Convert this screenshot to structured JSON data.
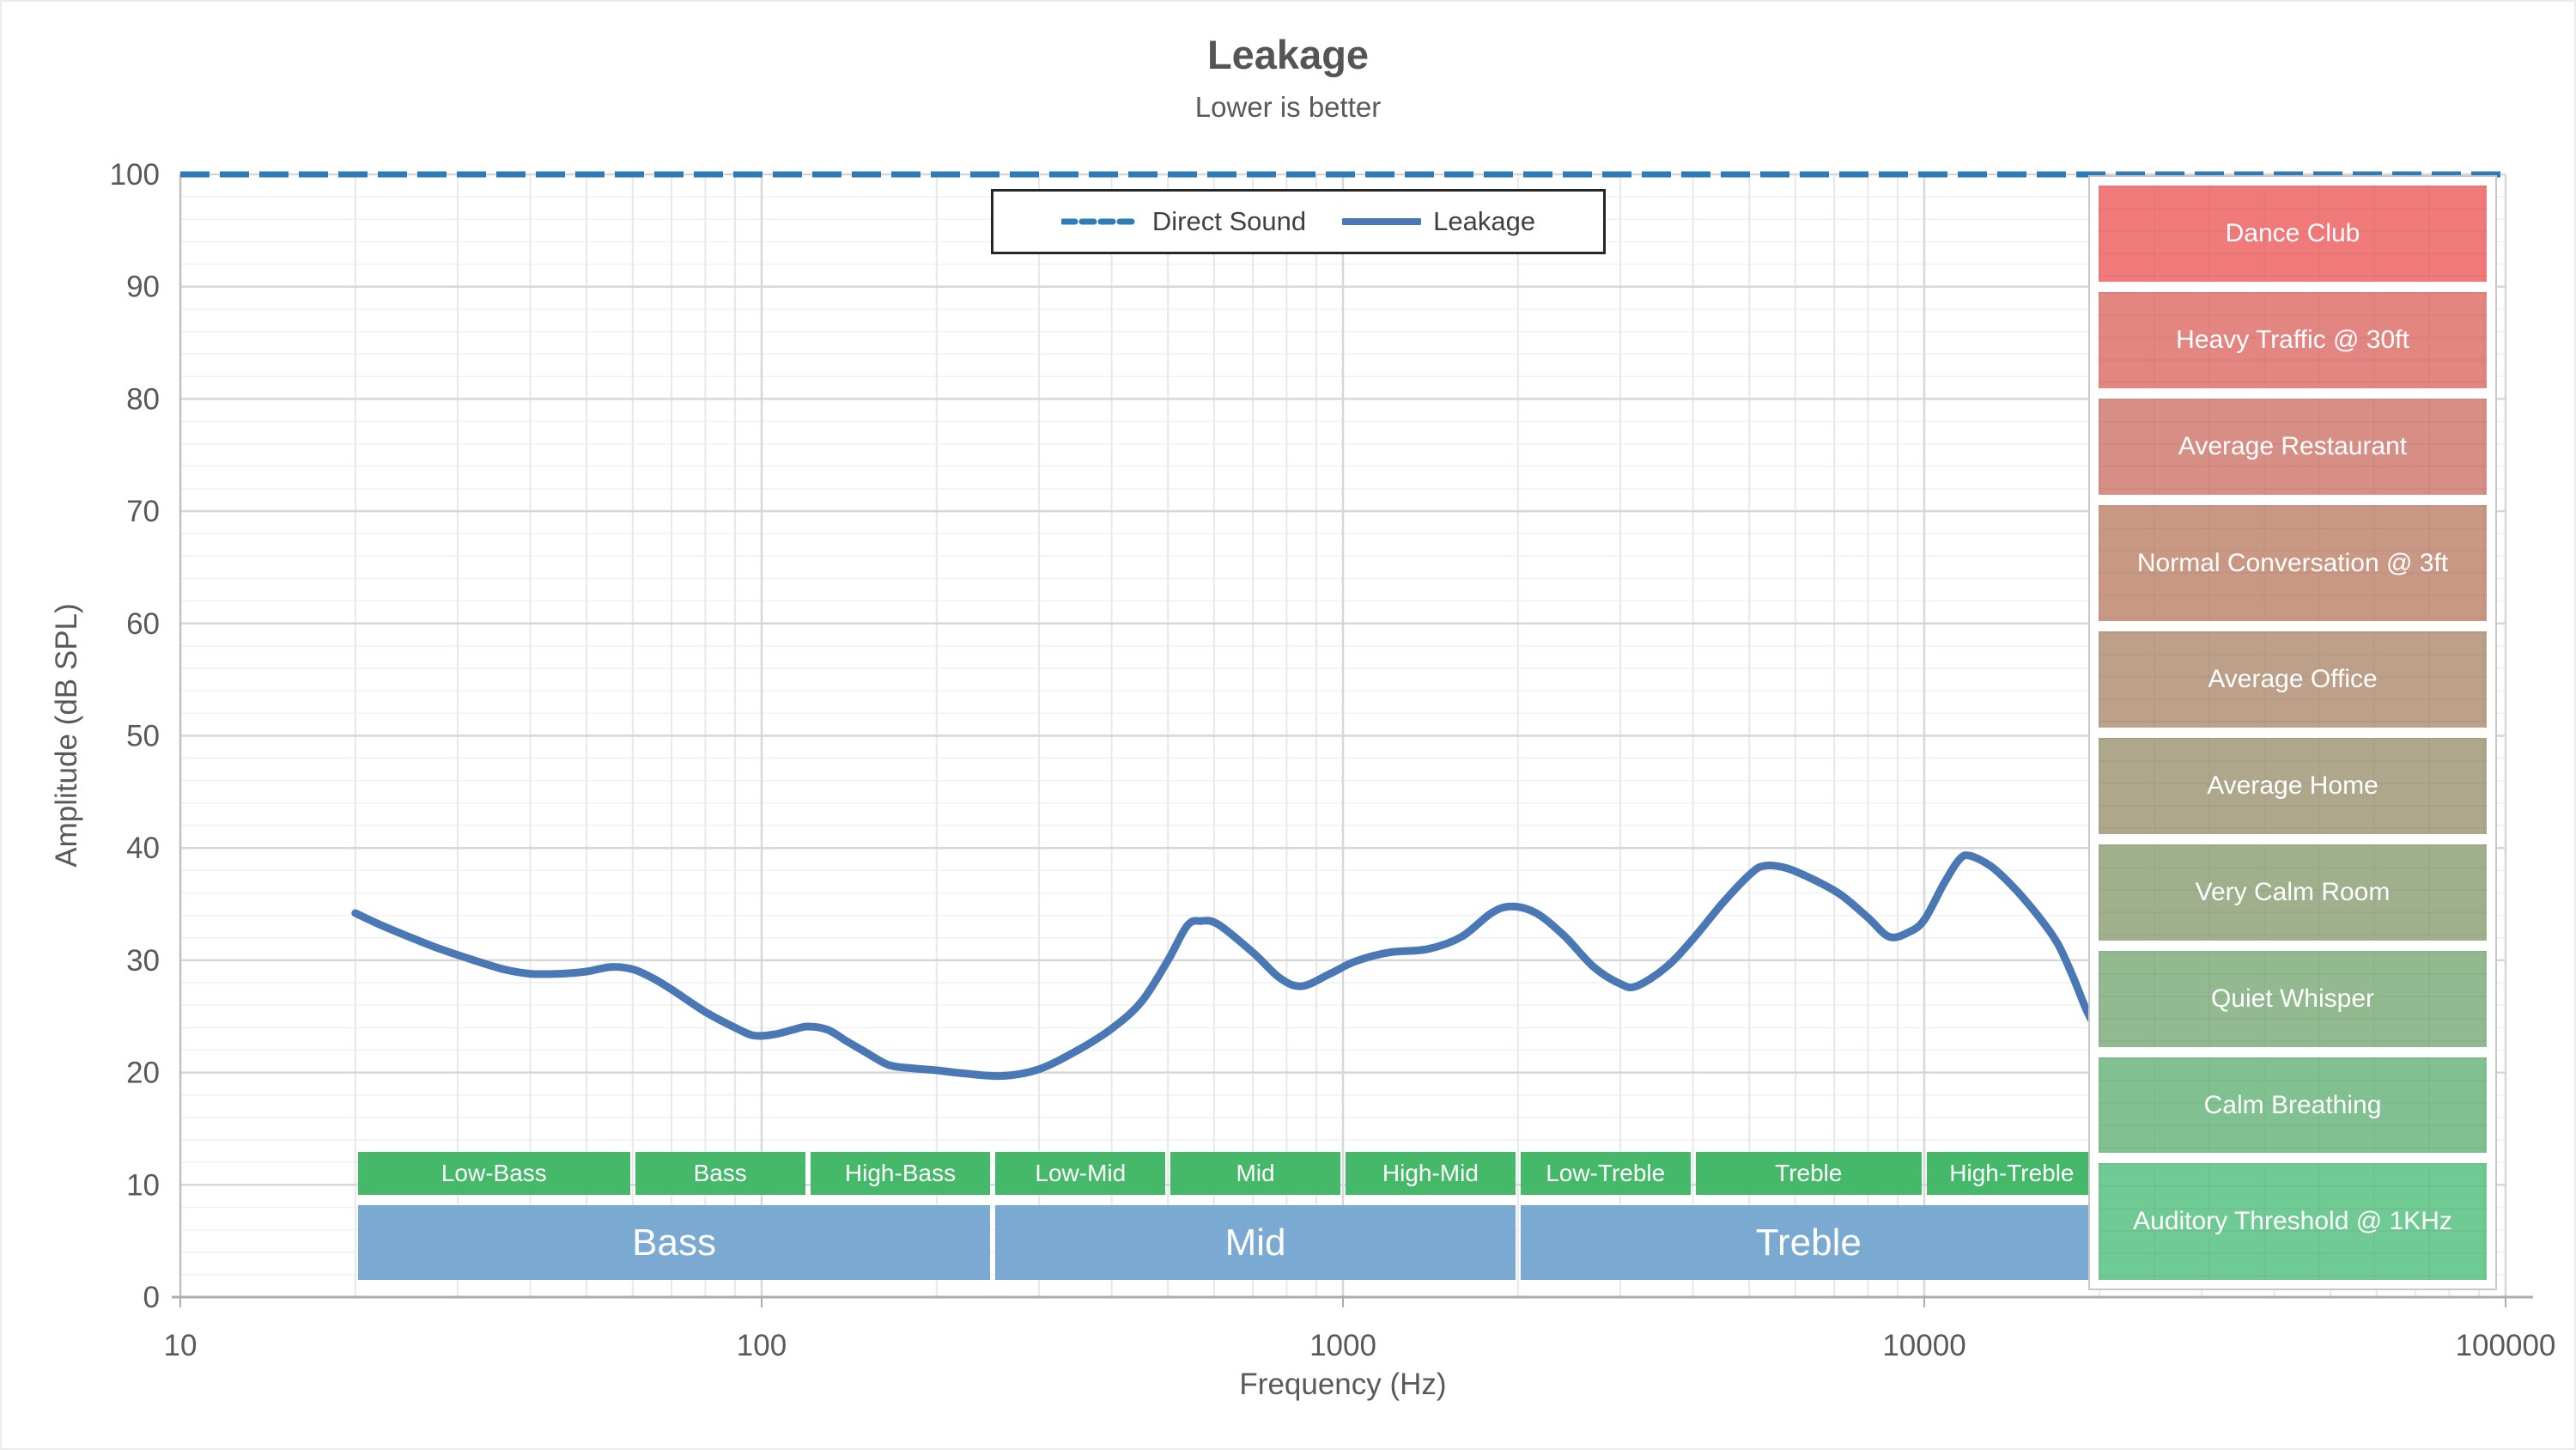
{
  "title": "Leakage",
  "subtitle": "Lower is better",
  "legend": {
    "items": [
      {
        "label": "Direct Sound",
        "style": "dashed",
        "color": "#2E7BB8"
      },
      {
        "label": "Leakage",
        "style": "solid",
        "color": "#4A78B5"
      }
    ]
  },
  "x_axis": {
    "label": "Frequency (Hz)",
    "scale": "log",
    "min": 10,
    "max": 100000,
    "ticks": [
      {
        "value": 10,
        "label": "10"
      },
      {
        "value": 100,
        "label": "100"
      },
      {
        "value": 1000,
        "label": "1000"
      },
      {
        "value": 10000,
        "label": "10000"
      },
      {
        "value": 100000,
        "label": "100000"
      }
    ]
  },
  "y_axis": {
    "label": "Amplitude (dB SPL)",
    "min": 0,
    "max": 100,
    "major_step": 10,
    "minor_step": 2,
    "tick_labels": [
      "0",
      "10",
      "20",
      "30",
      "40",
      "50",
      "60",
      "70",
      "80",
      "90",
      "100"
    ]
  },
  "chart_data": {
    "type": "line",
    "title": "Leakage",
    "subtitle": "Lower is better",
    "xlabel": "Frequency (Hz)",
    "ylabel": "Amplitude (dB SPL)",
    "x_scale": "log",
    "xlim": [
      10,
      100000
    ],
    "ylim": [
      0,
      100
    ],
    "grid": "on",
    "legend_position": "top-center",
    "series": [
      {
        "name": "Direct Sound",
        "line_style": "dashed",
        "color": "#2E7BB8",
        "x": [
          10,
          100000
        ],
        "y": [
          100,
          100
        ]
      },
      {
        "name": "Leakage",
        "line_style": "solid",
        "color": "#4A78B5",
        "x": [
          20,
          22,
          25,
          28,
          32,
          36,
          40,
          45,
          50,
          55,
          60,
          65,
          70,
          80,
          90,
          97,
          105,
          113,
          120,
          130,
          140,
          150,
          165,
          180,
          200,
          225,
          260,
          300,
          350,
          400,
          450,
          500,
          540,
          570,
          610,
          700,
          780,
          850,
          950,
          1050,
          1200,
          1400,
          1600,
          1800,
          1950,
          2150,
          2400,
          2700,
          3000,
          3200,
          3600,
          4000,
          4500,
          5000,
          5300,
          5800,
          6500,
          7200,
          8000,
          8700,
          9400,
          10000,
          10800,
          11500,
          12000,
          13000,
          14000,
          15000,
          16000,
          17000,
          18000,
          19000,
          19800
        ],
        "y": [
          34.2,
          33.2,
          32.0,
          31.0,
          30.0,
          29.2,
          28.8,
          28.8,
          29.0,
          29.4,
          29.2,
          28.4,
          27.4,
          25.4,
          24.0,
          23.3,
          23.4,
          23.8,
          24.1,
          23.8,
          22.8,
          21.9,
          20.7,
          20.4,
          20.2,
          19.9,
          19.7,
          20.3,
          22.0,
          23.9,
          26.3,
          30.0,
          33.1,
          33.5,
          33.2,
          30.7,
          28.4,
          27.7,
          28.8,
          29.9,
          30.7,
          31.0,
          32.1,
          34.2,
          34.8,
          34.2,
          32.2,
          29.4,
          27.9,
          27.7,
          29.4,
          31.9,
          35.1,
          37.6,
          38.4,
          38.2,
          37.1,
          35.8,
          33.8,
          32.1,
          32.5,
          33.6,
          36.8,
          39.0,
          39.3,
          38.4,
          36.9,
          35.2,
          33.4,
          31.4,
          28.6,
          25.6,
          23.8
        ]
      }
    ]
  },
  "frequency_bands": {
    "sub_color": "#45B86A",
    "group_color": "#7AA9D2",
    "sub": [
      {
        "label": "Low-Bass",
        "from_hz": 20,
        "to_hz": 60
      },
      {
        "label": "Bass",
        "from_hz": 60,
        "to_hz": 120
      },
      {
        "label": "High-Bass",
        "from_hz": 120,
        "to_hz": 250
      },
      {
        "label": "Low-Mid",
        "from_hz": 250,
        "to_hz": 500
      },
      {
        "label": "Mid",
        "from_hz": 500,
        "to_hz": 1000
      },
      {
        "label": "High-Mid",
        "from_hz": 1000,
        "to_hz": 2000
      },
      {
        "label": "Low-Treble",
        "from_hz": 2000,
        "to_hz": 4000
      },
      {
        "label": "Treble",
        "from_hz": 4000,
        "to_hz": 10000
      },
      {
        "label": "High-Treble",
        "from_hz": 10000,
        "to_hz": 20000
      }
    ],
    "group": [
      {
        "label": "Bass",
        "from_hz": 20,
        "to_hz": 250
      },
      {
        "label": "Mid",
        "from_hz": 250,
        "to_hz": 2000
      },
      {
        "label": "Treble",
        "from_hz": 2000,
        "to_hz": 20000
      }
    ]
  },
  "reference_levels": [
    {
      "label": "Dance Club",
      "color": "#F07A7A",
      "wrap": false
    },
    {
      "label": "Heavy Traffic @ 30ft",
      "color": "#E38580",
      "wrap": false
    },
    {
      "label": "Average Restaurant",
      "color": "#D68E85",
      "wrap": false
    },
    {
      "label": "Normal Conversation @ 3ft",
      "color": "#C99885",
      "wrap": true
    },
    {
      "label": "Average Office",
      "color": "#BCA089",
      "wrap": false
    },
    {
      "label": "Average Home",
      "color": "#AFA78C",
      "wrap": false
    },
    {
      "label": "Very Calm Room",
      "color": "#A0B08D",
      "wrap": false
    },
    {
      "label": "Quiet Whisper",
      "color": "#92B98F",
      "wrap": false
    },
    {
      "label": "Calm Breathing",
      "color": "#81C191",
      "wrap": false
    },
    {
      "label": "Auditory Threshold @ 1KHz",
      "color": "#70CA93",
      "wrap": true
    }
  ]
}
